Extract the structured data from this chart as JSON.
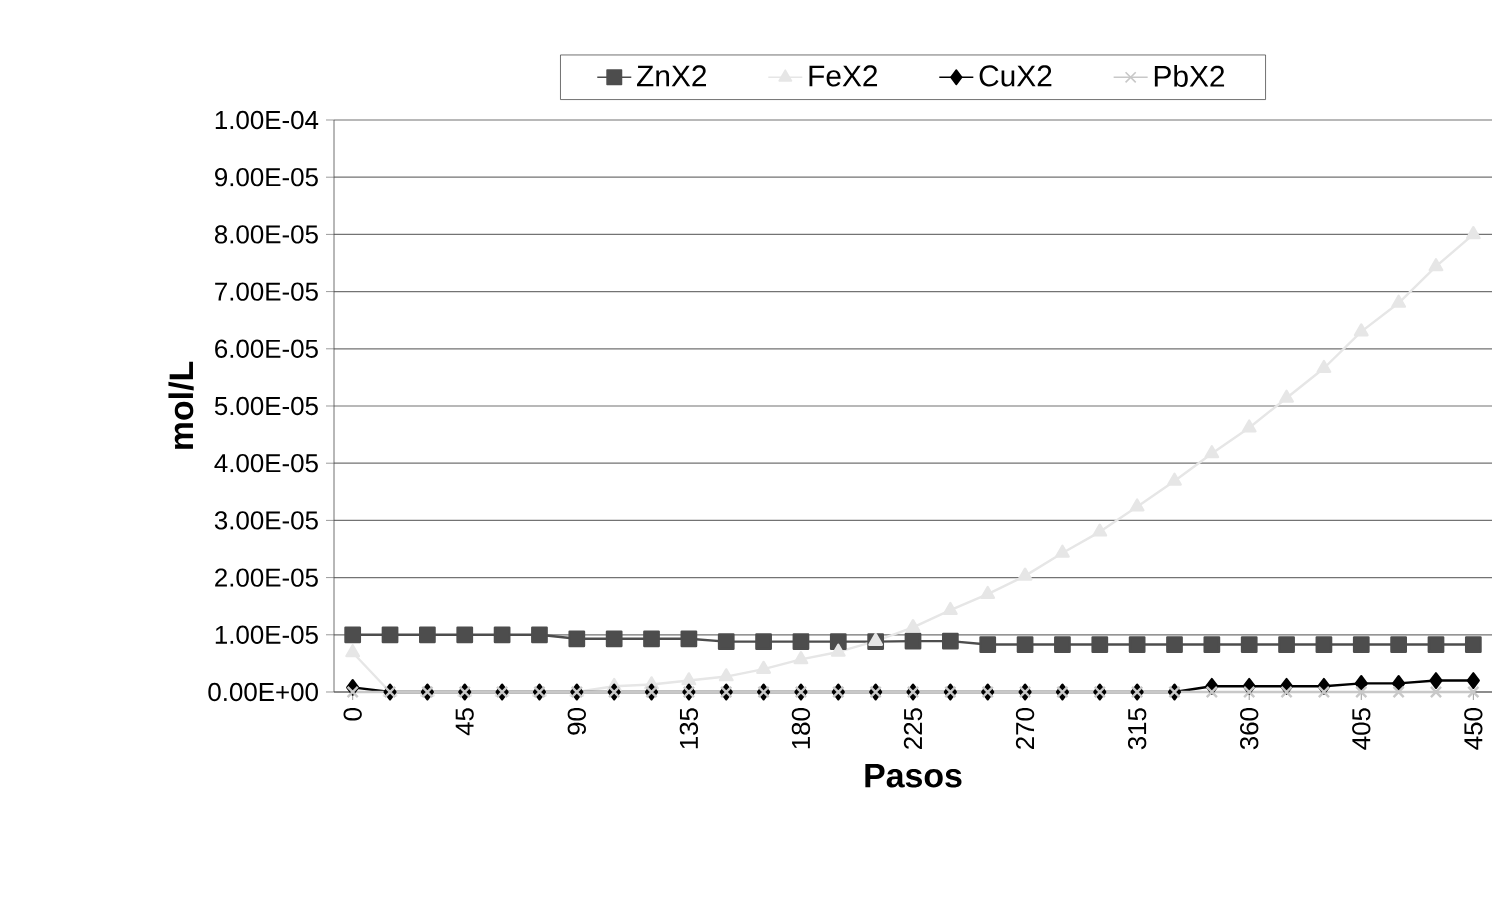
{
  "chart_data": {
    "type": "line",
    "xlabel": "Pasos",
    "ylabel": "mol/L",
    "x": [
      0,
      15,
      30,
      45,
      60,
      75,
      90,
      105,
      120,
      135,
      150,
      165,
      180,
      195,
      210,
      225,
      240,
      255,
      270,
      285,
      300,
      315,
      330,
      345,
      360,
      375,
      390,
      405,
      420,
      435,
      450
    ],
    "xlim": [
      -7.5,
      457.5
    ],
    "xticks": [
      0,
      45,
      90,
      135,
      180,
      225,
      270,
      315,
      360,
      405,
      450
    ],
    "ylim": [
      0,
      0.0001
    ],
    "yticks": [
      {
        "value": 0,
        "label": "0.00E+00"
      },
      {
        "value": 1e-05,
        "label": "1.00E-05"
      },
      {
        "value": 2e-05,
        "label": "2.00E-05"
      },
      {
        "value": 3e-05,
        "label": "3.00E-05"
      },
      {
        "value": 4e-05,
        "label": "4.00E-05"
      },
      {
        "value": 5e-05,
        "label": "5.00E-05"
      },
      {
        "value": 6e-05,
        "label": "6.00E-05"
      },
      {
        "value": 7e-05,
        "label": "7.00E-05"
      },
      {
        "value": 8e-05,
        "label": "8.00E-05"
      },
      {
        "value": 9e-05,
        "label": "9.00E-05"
      },
      {
        "value": 0.0001,
        "label": "1.00E-04"
      }
    ],
    "grid": "y",
    "legend": "top",
    "series": [
      {
        "name": "ZnX2",
        "color": "#4d4d4d",
        "marker": "square",
        "values": [
          1e-05,
          1e-05,
          1e-05,
          1e-05,
          1e-05,
          1e-05,
          9.3e-06,
          9.3e-06,
          9.3e-06,
          9.3e-06,
          8.8e-06,
          8.8e-06,
          8.8e-06,
          8.8e-06,
          8.8e-06,
          8.9e-06,
          8.9e-06,
          8.3e-06,
          8.3e-06,
          8.3e-06,
          8.3e-06,
          8.3e-06,
          8.3e-06,
          8.3e-06,
          8.3e-06,
          8.3e-06,
          8.3e-06,
          8.3e-06,
          8.3e-06,
          8.3e-06,
          8.3e-06
        ]
      },
      {
        "name": "FeX2",
        "color": "#e6e6e6",
        "marker": "triangle",
        "values": [
          6.9e-06,
          0,
          0,
          0,
          0,
          0,
          0,
          1e-06,
          1.3e-06,
          2e-06,
          2.7e-06,
          4e-06,
          5.7e-06,
          7e-06,
          8.9e-06,
          1.13e-05,
          1.43e-05,
          1.71e-05,
          2.03e-05,
          2.43e-05,
          2.8e-05,
          3.24e-05,
          3.69e-05,
          4.17e-05,
          4.62e-05,
          5.14e-05,
          5.66e-05,
          6.3e-05,
          6.8e-05,
          7.44e-05,
          8e-05
        ]
      },
      {
        "name": "CuX2",
        "color": "#000000",
        "marker": "diamond",
        "values": [
          8e-07,
          0,
          0,
          0,
          0,
          0,
          0,
          0,
          0,
          0,
          0,
          0,
          0,
          0,
          0,
          0,
          0,
          0,
          0,
          0,
          0,
          0,
          0,
          1e-06,
          1e-06,
          1e-06,
          1e-06,
          1.5e-06,
          1.5e-06,
          2e-06,
          2e-06
        ]
      },
      {
        "name": "PbX2",
        "color": "#c8c8c8",
        "marker": "cross",
        "values": [
          0,
          0,
          0,
          0,
          0,
          0,
          0,
          0,
          0,
          0,
          0,
          0,
          0,
          0,
          0,
          0,
          0,
          0,
          0,
          0,
          0,
          0,
          0,
          0,
          0,
          0,
          0,
          0,
          0,
          0,
          0
        ]
      }
    ]
  }
}
